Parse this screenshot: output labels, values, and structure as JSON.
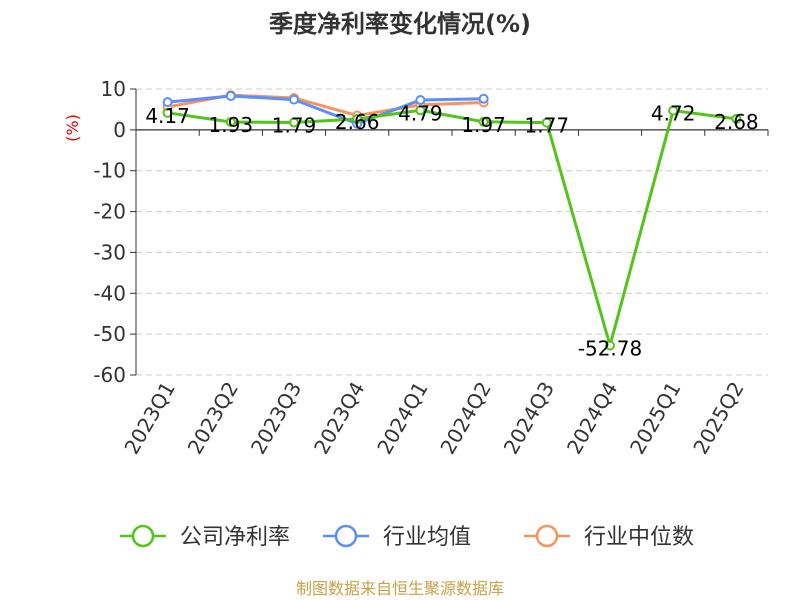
{
  "chart_data": {
    "type": "line",
    "title": "季度净利率变化情况(%)",
    "ylabel": "(%)",
    "xlabel": "",
    "ylim": [
      -60,
      10
    ],
    "yticks": [
      10,
      0,
      -10,
      -20,
      -30,
      -40,
      -50,
      -60
    ],
    "categories": [
      "2023Q1",
      "2023Q2",
      "2023Q3",
      "2023Q4",
      "2024Q1",
      "2024Q2",
      "2024Q3",
      "2024Q4",
      "2025Q1",
      "2025Q2"
    ],
    "series": [
      {
        "name": "公司净利率",
        "color": "#52c41a",
        "values": [
          4.17,
          1.93,
          1.79,
          2.66,
          4.79,
          1.97,
          1.77,
          -52.78,
          4.72,
          2.68
        ],
        "labels": [
          "4.17",
          "1.93",
          "1.79",
          "2.66",
          "4.79",
          "1.97",
          "1.77",
          "-52.78",
          "4.72",
          "2.68"
        ]
      },
      {
        "name": "行业均值",
        "color": "#5b8ff9",
        "values": [
          6.8,
          8.3,
          7.4,
          1.5,
          7.3,
          7.6,
          null,
          null,
          null,
          null
        ]
      },
      {
        "name": "行业中位数",
        "color": "#f6935f",
        "values": [
          5.6,
          8.5,
          7.8,
          3.5,
          6.1,
          6.7,
          null,
          null,
          null,
          null
        ]
      }
    ],
    "grid": true,
    "legend_position": "bottom"
  },
  "source": "制图数据来自恒生聚源数据库"
}
